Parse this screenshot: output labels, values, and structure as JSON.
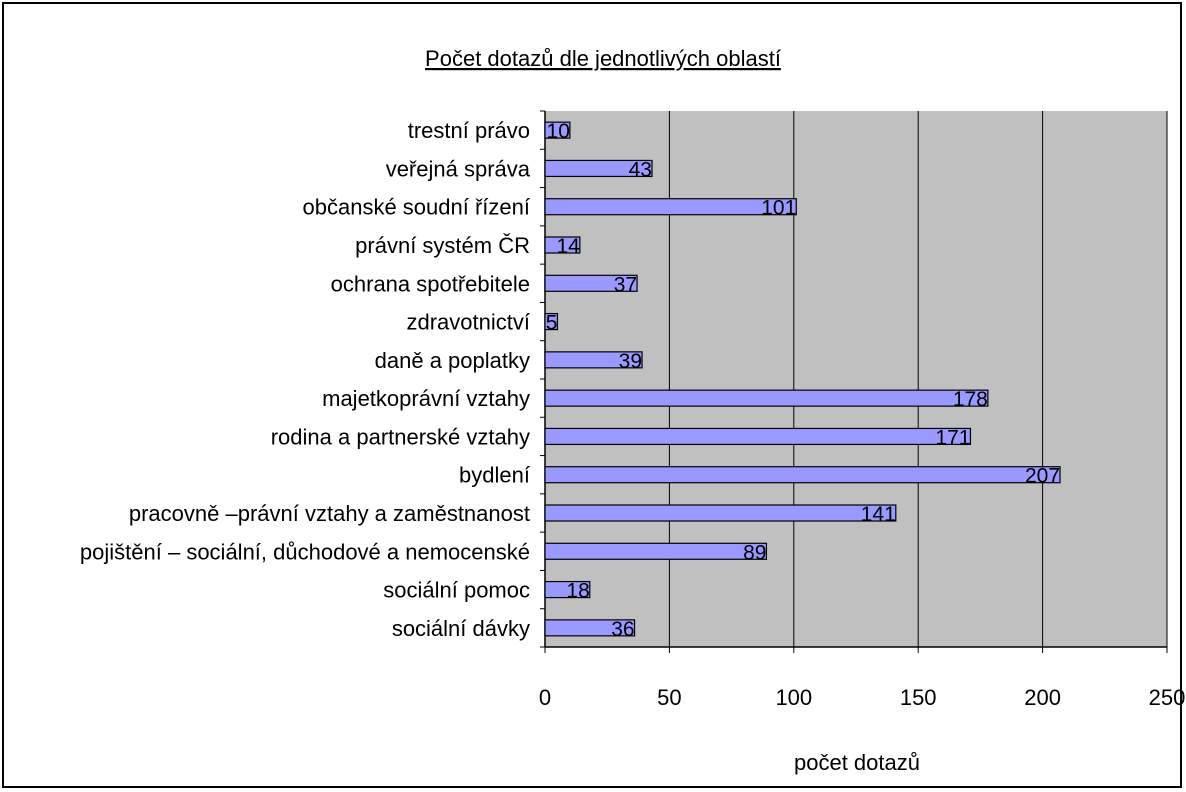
{
  "chart_data": {
    "type": "bar",
    "orientation": "horizontal",
    "title": "Počet dotazů dle jednotlivých oblastí",
    "xlabel": "počet dotazů",
    "ylabel": "",
    "xlim": [
      0,
      250
    ],
    "xticks": [
      0,
      50,
      100,
      150,
      200,
      250
    ],
    "grid": true,
    "legend": "none",
    "colors": {
      "bar": "#9999ff",
      "plot_bg": "#c0c0c0",
      "bar_edge": "#000000"
    },
    "categories": [
      "trestní právo",
      "veřejná správa",
      "občanské soudní řízení",
      "právní systém ČR",
      "ochrana spotřebitele",
      "zdravotnictví",
      "daně a poplatky",
      "majetkoprávní vztahy",
      "rodina a partnerské vztahy",
      "bydlení",
      "pracovně –právní vztahy a zaměstnanost",
      "pojištění – sociální, důchodové a nemocenské",
      "sociální pomoc",
      "sociální dávky"
    ],
    "values": [
      10,
      43,
      101,
      14,
      37,
      5,
      39,
      178,
      171,
      207,
      141,
      89,
      18,
      36
    ]
  }
}
